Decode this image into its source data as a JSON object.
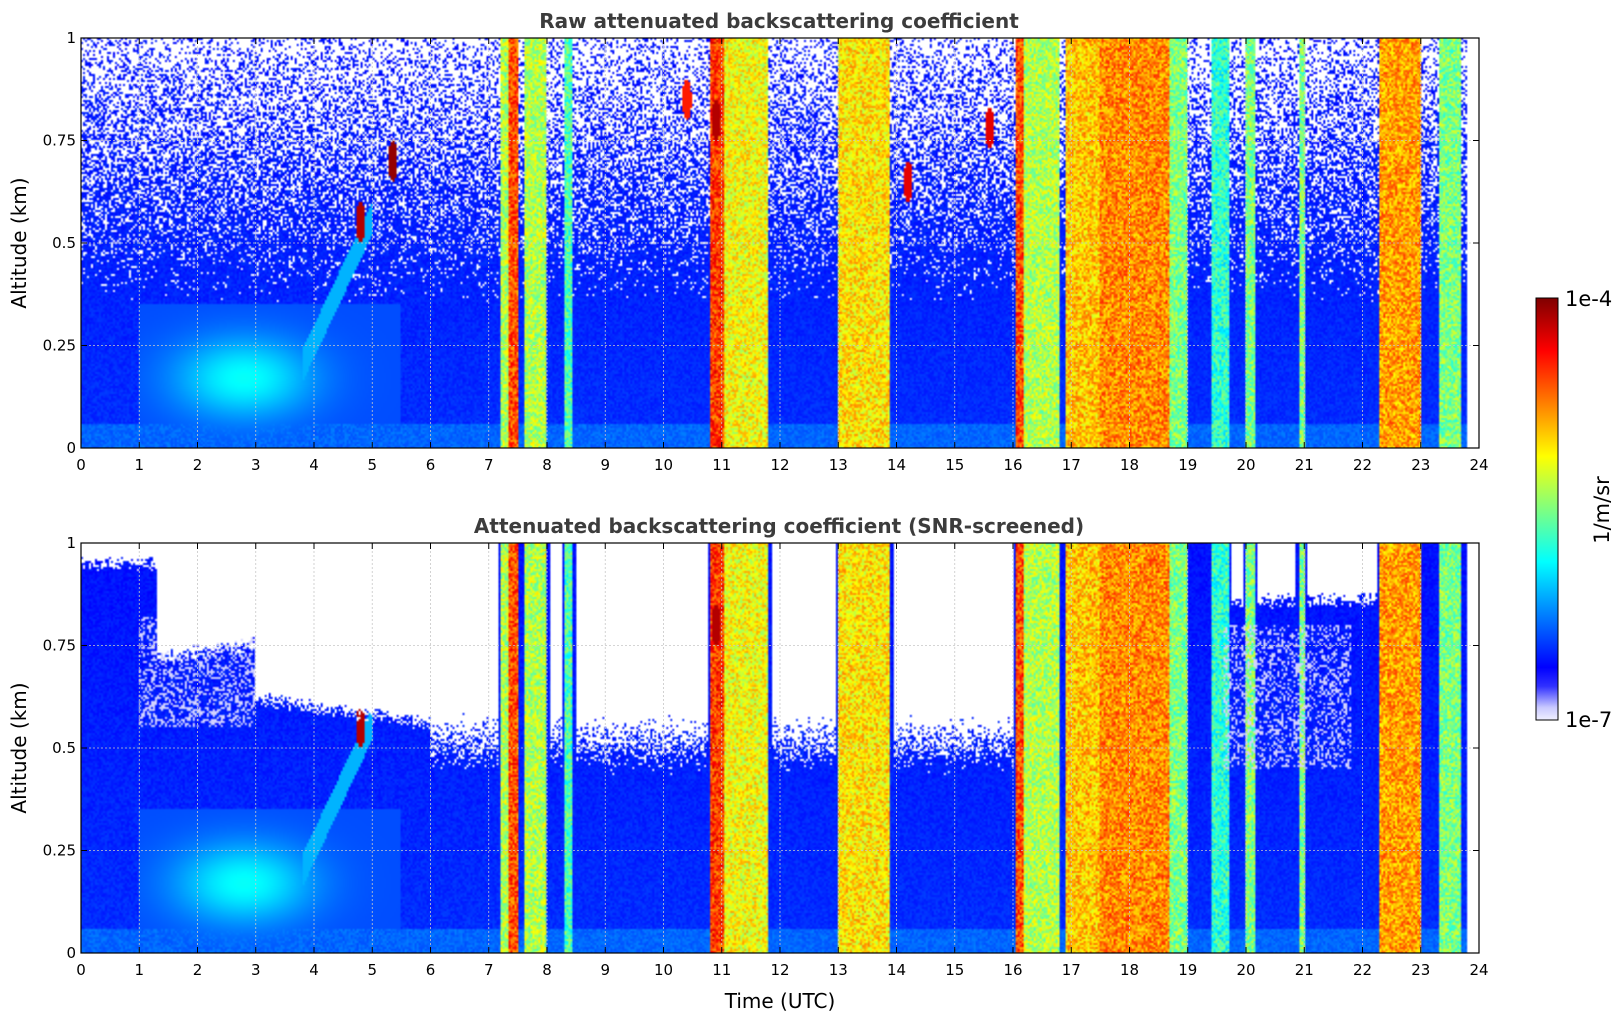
{
  "chart_data": [
    {
      "type": "heatmap",
      "title": "Raw attenuated backscattering coefficient",
      "xlabel": "",
      "ylabel": "Altitude (km)",
      "xlim": [
        0,
        24
      ],
      "ylim": [
        0,
        1
      ],
      "x_ticks": [
        "0",
        "1",
        "2",
        "3",
        "4",
        "5",
        "6",
        "7",
        "8",
        "9",
        "10",
        "11",
        "12",
        "13",
        "14",
        "15",
        "16",
        "17",
        "18",
        "19",
        "20",
        "21",
        "22",
        "23",
        "24"
      ],
      "y_ticks": [
        "0",
        "0.25",
        "0.5",
        "0.75",
        "1"
      ],
      "grid": true,
      "screened": false
    },
    {
      "type": "heatmap",
      "title": "Attenuated backscattering coefficient (SNR-screened)",
      "xlabel": "Time (UTC)",
      "ylabel": "Altitude (km)",
      "xlim": [
        0,
        24
      ],
      "ylim": [
        0,
        1
      ],
      "x_ticks": [
        "0",
        "1",
        "2",
        "3",
        "4",
        "5",
        "6",
        "7",
        "8",
        "9",
        "10",
        "11",
        "12",
        "13",
        "14",
        "15",
        "16",
        "17",
        "18",
        "19",
        "20",
        "21",
        "22",
        "23",
        "24"
      ],
      "y_ticks": [
        "0",
        "0.25",
        "0.5",
        "0.75",
        "1"
      ],
      "grid": true,
      "screened": true
    }
  ],
  "colorbar": {
    "label": "1/m/sr",
    "max_label": "1e-4",
    "min_label": "1e-7",
    "scale": "log",
    "range": [
      1e-07,
      0.0001
    ],
    "colormap": "jet",
    "under_color": "#f0f0ff"
  },
  "features": {
    "cloud_columns": [
      {
        "t0": 7.2,
        "t1": 7.5,
        "v": 0.55
      },
      {
        "t0": 7.35,
        "t1": 7.5,
        "v": 0.8
      },
      {
        "t0": 7.6,
        "t1": 8.0,
        "v": 0.55
      },
      {
        "t0": 8.3,
        "t1": 8.45,
        "v": 0.45
      },
      {
        "t0": 10.8,
        "t1": 11.05,
        "v": 0.82
      },
      {
        "t0": 11.05,
        "t1": 11.8,
        "v": 0.62
      },
      {
        "t0": 13.0,
        "t1": 13.9,
        "v": 0.65
      },
      {
        "t0": 16.05,
        "t1": 16.2,
        "v": 0.8
      },
      {
        "t0": 16.2,
        "t1": 16.8,
        "v": 0.55
      },
      {
        "t0": 16.9,
        "t1": 17.5,
        "v": 0.68
      },
      {
        "t0": 17.5,
        "t1": 18.7,
        "v": 0.74
      },
      {
        "t0": 18.7,
        "t1": 19.0,
        "v": 0.5
      },
      {
        "t0": 19.4,
        "t1": 19.7,
        "v": 0.42
      },
      {
        "t0": 20.0,
        "t1": 20.15,
        "v": 0.5
      },
      {
        "t0": 20.9,
        "t1": 21.0,
        "v": 0.5
      },
      {
        "t0": 22.3,
        "t1": 23.0,
        "v": 0.72
      },
      {
        "t0": 23.3,
        "t1": 23.7,
        "v": 0.5
      }
    ],
    "hotspots": [
      {
        "t": 4.8,
        "z": 0.55,
        "v": 0.95
      },
      {
        "t": 5.35,
        "z": 0.7,
        "v": 0.98
      },
      {
        "t": 10.9,
        "z": 0.8,
        "v": 0.95
      },
      {
        "t": 14.2,
        "z": 0.65,
        "v": 0.9
      },
      {
        "t": 15.6,
        "z": 0.78,
        "v": 0.9
      },
      {
        "t": 10.4,
        "z": 0.85,
        "v": 0.85
      }
    ]
  }
}
